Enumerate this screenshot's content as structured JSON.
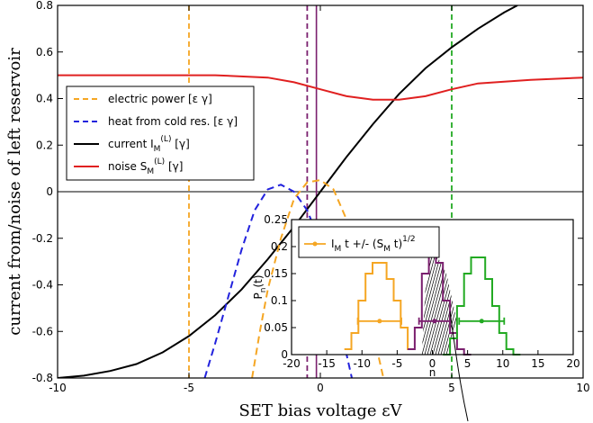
{
  "chart_data": [
    {
      "type": "line",
      "xlabel": "SET bias voltage εV",
      "ylabel": "current from/noise of left reservoir",
      "xlim": [
        -10,
        10
      ],
      "ylim": [
        -0.8,
        0.8
      ],
      "xticks": [
        "-10",
        "-5",
        "0",
        "5",
        "10"
      ],
      "yticks": [
        "-0.8",
        "-0.6",
        "-0.4",
        "-0.2",
        "0",
        "0.2",
        "0.4",
        "0.6",
        "0.8"
      ],
      "grid": false,
      "legend_position": "top-left",
      "legend": [
        {
          "text": "electric power [ε γ]",
          "sub": "",
          "sup": "",
          "tail": "",
          "color": "#f5a623",
          "dash": true
        },
        {
          "text": "heat from cold res. [ε γ]",
          "sub": "",
          "sup": "",
          "tail": "",
          "color": "#2222dd",
          "dash": true
        },
        {
          "text": "current I",
          "sub": "M",
          "sup": "(L)",
          "tail": " [γ]",
          "color": "#000000",
          "dash": false
        },
        {
          "text": "noise S",
          "sub": "M",
          "sup": "(L)",
          "tail": " [γ]",
          "color": "#e02020",
          "dash": false
        }
      ],
      "vlines": [
        {
          "x": -5,
          "color": "#f5a623"
        },
        {
          "x": -0.5,
          "color": "#7a1f6e"
        },
        {
          "x": 5,
          "color": "#22aa22"
        }
      ],
      "series": [
        {
          "color": "#000000",
          "dash": false,
          "x": [
            -10,
            -9,
            -8,
            -7,
            -6,
            -5,
            -4,
            -3,
            -2,
            -1,
            0,
            1,
            2,
            3,
            4,
            5,
            6,
            7,
            7.5
          ],
          "y": [
            -0.8,
            -0.79,
            -0.77,
            -0.74,
            -0.69,
            -0.62,
            -0.53,
            -0.42,
            -0.29,
            -0.15,
            0,
            0.15,
            0.29,
            0.42,
            0.53,
            0.62,
            0.7,
            0.77,
            0.8
          ]
        },
        {
          "color": "#e02020",
          "dash": false,
          "x": [
            -10,
            -8,
            -6,
            -4,
            -2,
            -1,
            0,
            1,
            2,
            3,
            4,
            5,
            6,
            8,
            10
          ],
          "y": [
            0.5,
            0.5,
            0.5,
            0.5,
            0.49,
            0.47,
            0.44,
            0.41,
            0.395,
            0.395,
            0.41,
            0.44,
            0.465,
            0.48,
            0.49
          ]
        },
        {
          "color": "#f5a623",
          "dash": true,
          "x": [
            -2.6,
            -2.3,
            -2,
            -1.5,
            -1,
            -0.5,
            0,
            0.5,
            1,
            1.5,
            2,
            2.4
          ],
          "y": [
            -0.8,
            -0.6,
            -0.42,
            -0.2,
            -0.03,
            0.04,
            0.05,
            0.01,
            -0.12,
            -0.35,
            -0.6,
            -0.8
          ]
        },
        {
          "color": "#2222dd",
          "dash": true,
          "x": [
            -4.4,
            -4,
            -3.5,
            -3,
            -2.5,
            -2,
            -1.5,
            -1,
            -0.5,
            0,
            0.5,
            0.8,
            1.2
          ],
          "y": [
            -0.8,
            -0.65,
            -0.45,
            -0.25,
            -0.08,
            0.01,
            0.03,
            0.0,
            -0.08,
            -0.22,
            -0.42,
            -0.6,
            -0.8
          ]
        }
      ]
    },
    {
      "type": "line",
      "ylabel": "P",
      "ylabel_sub": "n",
      "ylabel_tail": "(t)",
      "xlabel": "n",
      "xlim": [
        -20,
        20
      ],
      "ylim": [
        0,
        0.25
      ],
      "xticks": [
        "-20",
        "-15",
        "-10",
        "-5",
        "0",
        "5",
        "10",
        "15",
        "20"
      ],
      "yticks": [
        "0",
        "0.05",
        "0.1",
        "0.15",
        "0.2",
        "0.25"
      ],
      "legend": {
        "text": "I",
        "sub": "M",
        "mid": " t +/- (S",
        "sub2": "M",
        "tail": " t)",
        "sup": "1/2",
        "color": "#f5a623"
      },
      "series": [
        {
          "color": "#f5a623",
          "step": true,
          "x": [
            -12,
            -11,
            -10,
            -9,
            -8,
            -7,
            -6,
            -5,
            -4,
            -3
          ],
          "y": [
            0.01,
            0.04,
            0.1,
            0.15,
            0.17,
            0.17,
            0.14,
            0.1,
            0.05,
            0.01
          ]
        },
        {
          "color": "#7a1f6e",
          "step": true,
          "x": [
            -3,
            -2,
            -1,
            0,
            1,
            2,
            3,
            4,
            5
          ],
          "y": [
            0.01,
            0.05,
            0.15,
            0.2,
            0.17,
            0.1,
            0.04,
            0.01,
            0.0
          ]
        },
        {
          "color": "#22aa22",
          "step": true,
          "x": [
            2,
            3,
            4,
            5,
            6,
            7,
            8,
            9,
            10,
            11,
            12
          ],
          "y": [
            0.0,
            0.03,
            0.09,
            0.15,
            0.18,
            0.18,
            0.14,
            0.09,
            0.04,
            0.01,
            0.0
          ]
        }
      ],
      "errorbars": [
        {
          "x": -7.5,
          "y": 0.062,
          "xerr": 3.1,
          "color": "#f5a623"
        },
        {
          "x": 0.3,
          "y": 0.062,
          "xerr": 2.2,
          "color": "#7a1f6e"
        },
        {
          "x": 7,
          "y": 0.062,
          "xerr": 3.2,
          "color": "#22aa22"
        }
      ]
    }
  ]
}
